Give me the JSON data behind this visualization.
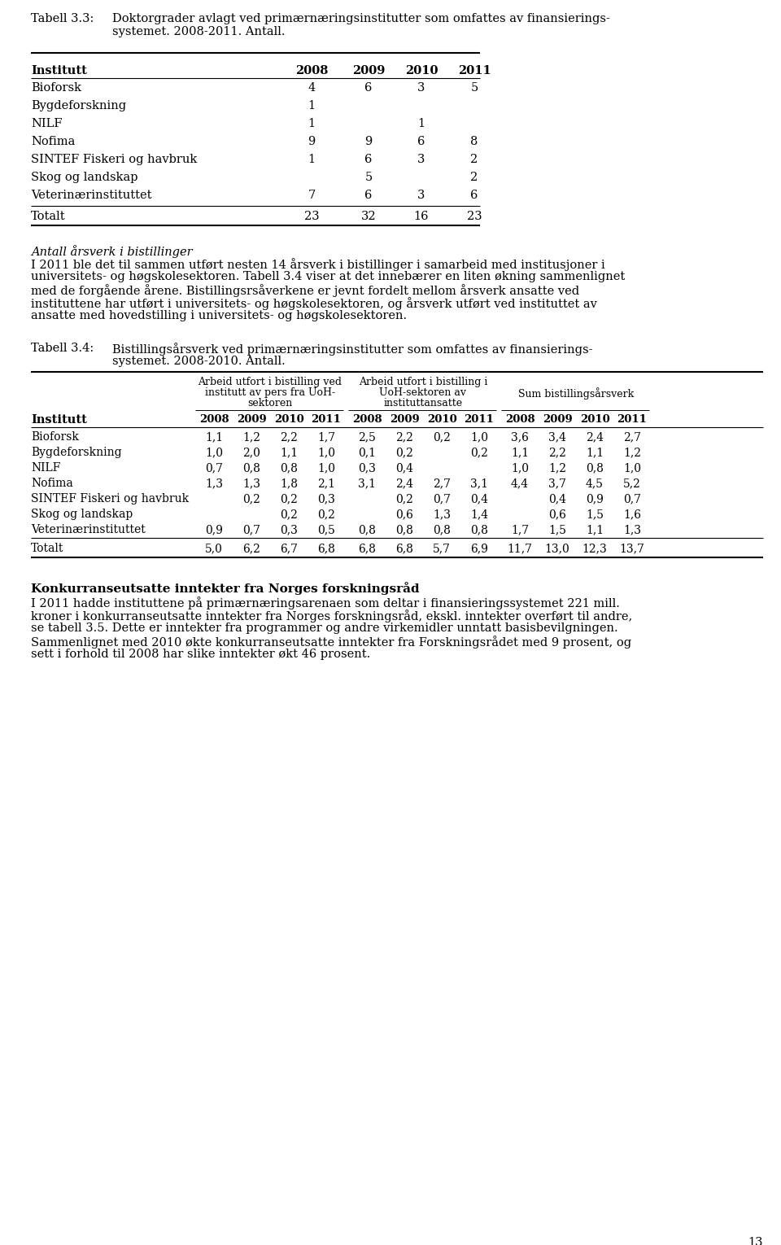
{
  "page_number": "13",
  "table1": {
    "caption_label": "Tabell 3.3:",
    "caption_text_line1": "Doktorgrader avlagt ved primærnæringsinstitutter som omfattes av finansierings-",
    "caption_text_line2": "systemet. 2008-2011. Antall.",
    "headers": [
      "Institutt",
      "2008",
      "2009",
      "2010",
      "2011"
    ],
    "rows": [
      [
        "Bioforsk",
        "4",
        "6",
        "3",
        "5"
      ],
      [
        "Bygdeforskning",
        "1",
        "",
        "",
        ""
      ],
      [
        "NILF",
        "1",
        "",
        "1",
        ""
      ],
      [
        "Nofima",
        "9",
        "9",
        "6",
        "8"
      ],
      [
        "SINTEF Fiskeri og havbruk",
        "1",
        "6",
        "3",
        "2"
      ],
      [
        "Skog og landskap",
        "",
        "5",
        "",
        "2"
      ],
      [
        "Veterinærinstituttet",
        "7",
        "6",
        "3",
        "6"
      ]
    ],
    "total_row": [
      "Totalt",
      "23",
      "32",
      "16",
      "23"
    ]
  },
  "section_title": "Antall årsverk i bistillinger",
  "section_text_lines": [
    "I 2011 ble det til sammen utført nesten 14 årsverk i bistillinger i samarbeid med institusjoner i",
    "universitets- og høgskolesektoren. Tabell 3.4 viser at det innebærer en liten økning sammenlignet",
    "med de forgående årene. Bistillingsrsåverkene er jevnt fordelt mellom årsverk ansatte ved",
    "instituttene har utført i universitets- og høgskolesektoren, og årsverk utført ved instituttet av",
    "ansatte med hovedstilling i universitets- og høgskolesektoren."
  ],
  "table2": {
    "caption_label": "Tabell 3.4:",
    "caption_text_line1": "Bistillingsårsverk ved primærnæringsinstitutter som omfattes av finansierings-",
    "caption_text_line2": "systemet. 2008-2010. Antall.",
    "grp1_line1": "Arbeid utfort i bistilling ved",
    "grp1_line2": "institutt av pers fra UoH-",
    "grp1_line3": "sektoren",
    "grp2_line1": "Arbeid utfort i bistilling i",
    "grp2_line2": "UoH-sektoren av",
    "grp2_line3": "instituttansatte",
    "grp3_line1": "Sum bistillingsårsverk",
    "rows": [
      [
        "Bioforsk",
        "1,1",
        "1,2",
        "2,2",
        "1,7",
        "2,5",
        "2,2",
        "0,2",
        "1,0",
        "3,6",
        "3,4",
        "2,4",
        "2,7"
      ],
      [
        "Bygdeforskning",
        "1,0",
        "2,0",
        "1,1",
        "1,0",
        "0,1",
        "0,2",
        "",
        "0,2",
        "1,1",
        "2,2",
        "1,1",
        "1,2"
      ],
      [
        "NILF",
        "0,7",
        "0,8",
        "0,8",
        "1,0",
        "0,3",
        "0,4",
        "",
        "",
        "1,0",
        "1,2",
        "0,8",
        "1,0"
      ],
      [
        "Nofima",
        "1,3",
        "1,3",
        "1,8",
        "2,1",
        "3,1",
        "2,4",
        "2,7",
        "3,1",
        "4,4",
        "3,7",
        "4,5",
        "5,2"
      ],
      [
        "SINTEF Fiskeri og havbruk",
        "",
        "0,2",
        "0,2",
        "0,3",
        "",
        "0,2",
        "0,7",
        "0,4",
        "",
        "0,4",
        "0,9",
        "0,7"
      ],
      [
        "Skog og landskap",
        "",
        "",
        "0,2",
        "0,2",
        "",
        "0,6",
        "1,3",
        "1,4",
        "",
        "0,6",
        "1,5",
        "1,6"
      ],
      [
        "Veterinærinstituttet",
        "0,9",
        "0,7",
        "0,3",
        "0,5",
        "0,8",
        "0,8",
        "0,8",
        "0,8",
        "1,7",
        "1,5",
        "1,1",
        "1,3"
      ]
    ],
    "total_row": [
      "Totalt",
      "5,0",
      "6,2",
      "6,7",
      "6,8",
      "6,8",
      "6,8",
      "5,7",
      "6,9",
      "11,7",
      "13,0",
      "12,3",
      "13,7"
    ]
  },
  "section2_title": "Konkurranseutsatte inntekter fra Norges forskningsråd",
  "section2_text_lines": [
    "I 2011 hadde instituttene på primærnæringsarenaen som deltar i finansieringssystemet 221 mill.",
    "kroner i konkurranseutsatte inntekter fra Norges forskningsråd, ekskl. inntekter overført til andre,",
    "se tabell 3.5. Dette er inntekter fra programmer og andre virkemidler unntatt basisbevilgningen.",
    "Sammenlignet med 2010 økte konkurranseutsatte inntekter fra Forskningsrådet med 9 prosent, og",
    "sett i forhold til 2008 har slike inntekter økt 46 prosent."
  ]
}
